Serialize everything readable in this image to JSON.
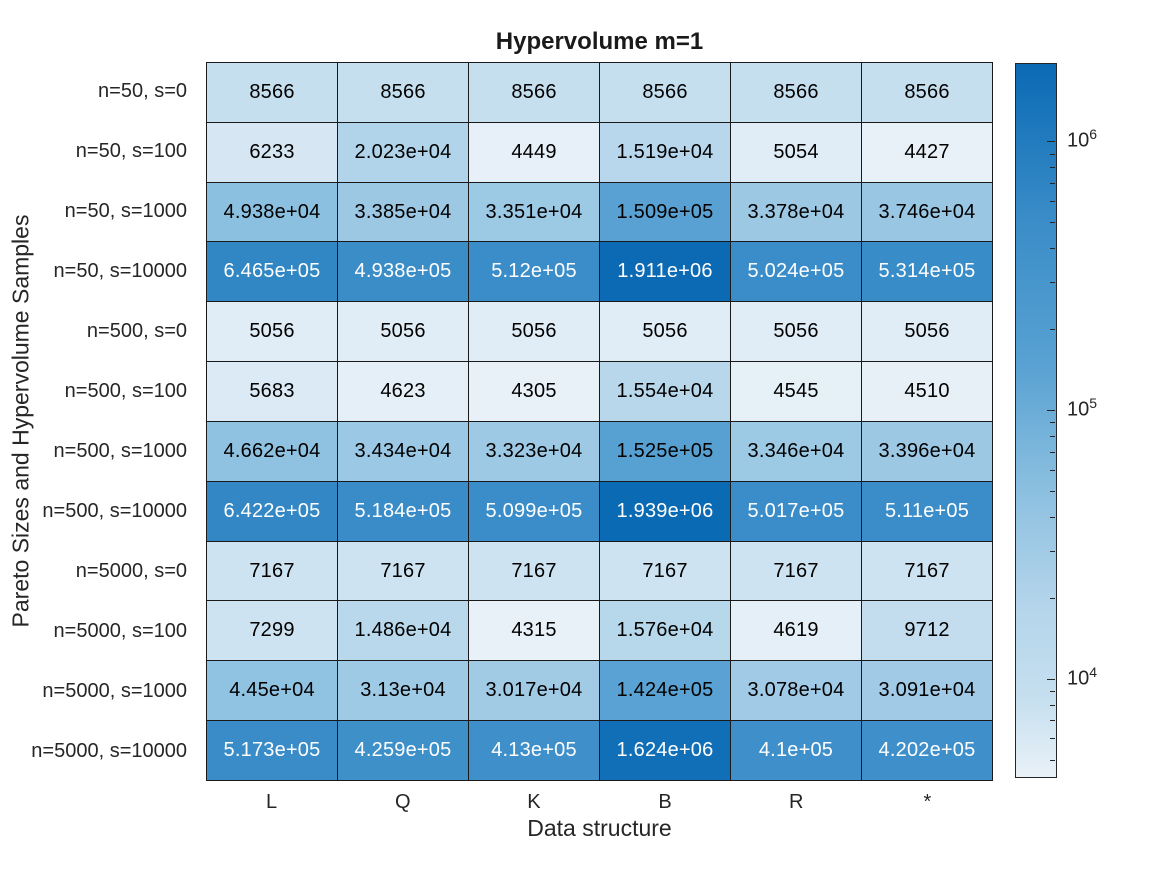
{
  "chart_data": {
    "type": "heatmap",
    "title": "Hypervolume m=1",
    "xlabel": "Data structure",
    "ylabel": "Pareto Sizes and Hypervolume Samples",
    "columns": [
      "L",
      "Q",
      "K",
      "B",
      "R",
      "*"
    ],
    "rows": [
      "n=50, s=0",
      "n=50, s=100",
      "n=50, s=1000",
      "n=50, s=10000",
      "n=500, s=0",
      "n=500, s=100",
      "n=500, s=1000",
      "n=500, s=10000",
      "n=5000, s=0",
      "n=5000, s=100",
      "n=5000, s=1000",
      "n=5000, s=10000"
    ],
    "values": [
      [
        "8566",
        "8566",
        "8566",
        "8566",
        "8566",
        "8566"
      ],
      [
        "6233",
        "2.023e+04",
        "4449",
        "1.519e+04",
        "5054",
        "4427"
      ],
      [
        "4.938e+04",
        "3.385e+04",
        "3.351e+04",
        "1.509e+05",
        "3.378e+04",
        "3.746e+04"
      ],
      [
        "6.465e+05",
        "4.938e+05",
        "5.12e+05",
        "1.911e+06",
        "5.024e+05",
        "5.314e+05"
      ],
      [
        "5056",
        "5056",
        "5056",
        "5056",
        "5056",
        "5056"
      ],
      [
        "5683",
        "4623",
        "4305",
        "1.554e+04",
        "4545",
        "4510"
      ],
      [
        "4.662e+04",
        "3.434e+04",
        "3.323e+04",
        "1.525e+05",
        "3.346e+04",
        "3.396e+04"
      ],
      [
        "6.422e+05",
        "5.184e+05",
        "5.099e+05",
        "1.939e+06",
        "5.017e+05",
        "5.11e+05"
      ],
      [
        "7167",
        "7167",
        "7167",
        "7167",
        "7167",
        "7167"
      ],
      [
        "7299",
        "1.486e+04",
        "4315",
        "1.576e+04",
        "4619",
        "9712"
      ],
      [
        "4.45e+04",
        "3.13e+04",
        "3.017e+04",
        "1.424e+05",
        "3.078e+04",
        "3.091e+04"
      ],
      [
        "5.173e+05",
        "4.259e+05",
        "4.13e+05",
        "1.624e+06",
        "4.1e+05",
        "4.202e+05"
      ]
    ],
    "color_scale": {
      "scaling": "log",
      "colormap_stops": [
        [
          0.0,
          "#e9f1f8"
        ],
        [
          0.11,
          "#c6dfef"
        ],
        [
          0.25,
          "#b2d4ea"
        ],
        [
          0.4,
          "#8cc0e0"
        ],
        [
          0.58,
          "#58a1d2"
        ],
        [
          0.78,
          "#3a8dc8"
        ],
        [
          1.0,
          "#0b6ab4"
        ]
      ],
      "grid_line_color": "#1a1a1a",
      "cell_text_dark": "#000000",
      "cell_text_light": "#ffffff",
      "colorbar_major_ticks": [
        {
          "value": 10000,
          "base": "10",
          "exponent": "4"
        },
        {
          "value": 100000,
          "base": "10",
          "exponent": "5"
        },
        {
          "value": 1000000,
          "base": "10",
          "exponent": "6"
        }
      ],
      "colorbar_minor_ticks": [
        5000,
        6000,
        7000,
        8000,
        9000,
        20000,
        30000,
        40000,
        50000,
        60000,
        70000,
        80000,
        90000,
        200000,
        300000,
        400000,
        500000,
        600000,
        700000,
        800000,
        900000
      ]
    }
  }
}
